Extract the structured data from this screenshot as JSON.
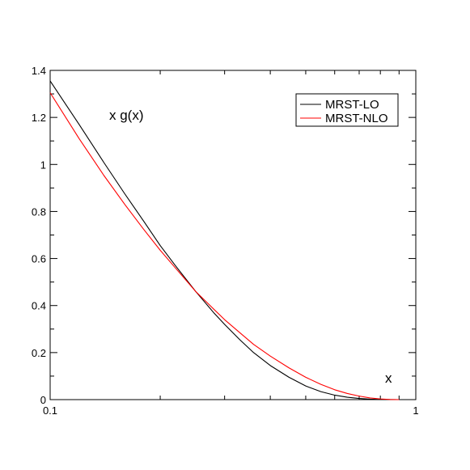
{
  "chart_data": {
    "type": "line",
    "title": "",
    "ylabel": "x g(x)",
    "xlabel": "x",
    "xscale": "log",
    "xlim": [
      0.1,
      1
    ],
    "ylim": [
      0,
      1.4
    ],
    "grid": false,
    "legend_position": "top-right",
    "x_ticks": [
      {
        "value": 0.1,
        "label": "0.1"
      },
      {
        "value": 1,
        "label": "1"
      }
    ],
    "y_ticks": [
      {
        "value": 0,
        "label": "0"
      },
      {
        "value": 0.2,
        "label": "0.2"
      },
      {
        "value": 0.4,
        "label": "0.4"
      },
      {
        "value": 0.6,
        "label": "0.6"
      },
      {
        "value": 0.8,
        "label": "0.8"
      },
      {
        "value": 1.0,
        "label": "1"
      },
      {
        "value": 1.2,
        "label": "1.2"
      },
      {
        "value": 1.4,
        "label": "1.4"
      }
    ],
    "series": [
      {
        "name": "MRST-LO",
        "color": "#000000",
        "x": [
          0.1,
          0.12,
          0.14,
          0.16,
          0.18,
          0.2,
          0.22,
          0.25,
          0.28,
          0.3,
          0.33,
          0.36,
          0.4,
          0.45,
          0.5,
          0.55,
          0.6,
          0.65,
          0.7,
          0.75,
          0.8,
          0.85,
          0.9
        ],
        "y": [
          1.355,
          1.17,
          1.01,
          0.875,
          0.76,
          0.655,
          0.57,
          0.46,
          0.37,
          0.32,
          0.255,
          0.2,
          0.145,
          0.095,
          0.058,
          0.034,
          0.019,
          0.01,
          0.005,
          0.002,
          0.0008,
          0.0002,
          0.0
        ]
      },
      {
        "name": "MRST-NLO",
        "color": "#ff0000",
        "x": [
          0.1,
          0.12,
          0.14,
          0.16,
          0.18,
          0.2,
          0.22,
          0.25,
          0.28,
          0.3,
          0.33,
          0.36,
          0.4,
          0.45,
          0.5,
          0.55,
          0.6,
          0.65,
          0.7,
          0.75,
          0.8,
          0.85,
          0.9
        ],
        "y": [
          1.305,
          1.11,
          0.955,
          0.83,
          0.725,
          0.635,
          0.56,
          0.46,
          0.385,
          0.34,
          0.285,
          0.235,
          0.185,
          0.135,
          0.095,
          0.065,
          0.042,
          0.026,
          0.015,
          0.007,
          0.003,
          0.0008,
          0.0
        ]
      }
    ]
  }
}
